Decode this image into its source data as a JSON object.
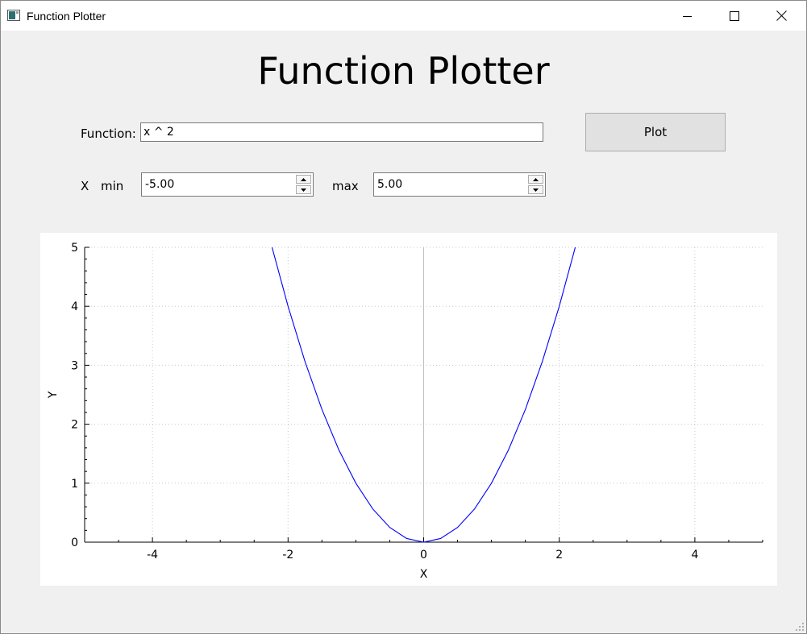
{
  "window": {
    "title": "Function Plotter",
    "icons": {
      "app": "app-window-icon",
      "minimize": "minimize-icon",
      "maximize": "maximize-icon",
      "close": "close-icon"
    }
  },
  "main": {
    "heading": "Function Plotter",
    "function_label": "Function:",
    "function_value": "x ^ 2",
    "plot_button": "Plot",
    "x_label": "X",
    "min_label": "min",
    "min_value": "-5.00",
    "max_label": "max",
    "max_value": "5.00"
  },
  "colors": {
    "curve": "#0000ff",
    "grid": "#c8c8c8",
    "zero_line": "#c0c0c0",
    "axis": "#000000",
    "background": "#f0f0f0"
  },
  "chart_data": {
    "type": "line",
    "title": "",
    "xlabel": "X",
    "ylabel": "Y",
    "xlim": [
      -5,
      5
    ],
    "ylim": [
      0,
      5
    ],
    "x_ticks": [
      "-4",
      "-2",
      "0",
      "2",
      "4"
    ],
    "y_ticks": [
      "0",
      "1",
      "2",
      "3",
      "4",
      "5"
    ],
    "grid": true,
    "series": [
      {
        "x": [
          -2.236,
          -2,
          -1.75,
          -1.5,
          -1.25,
          -1,
          -0.75,
          -0.5,
          -0.25,
          0,
          0.25,
          0.5,
          0.75,
          1,
          1.25,
          1.5,
          1.75,
          2,
          2.236
        ],
        "y": [
          5,
          4,
          3.0625,
          2.25,
          1.5625,
          1,
          0.5625,
          0.25,
          0.0625,
          0,
          0.0625,
          0.25,
          0.5625,
          1,
          1.5625,
          2.25,
          3.0625,
          4,
          5
        ]
      }
    ]
  }
}
